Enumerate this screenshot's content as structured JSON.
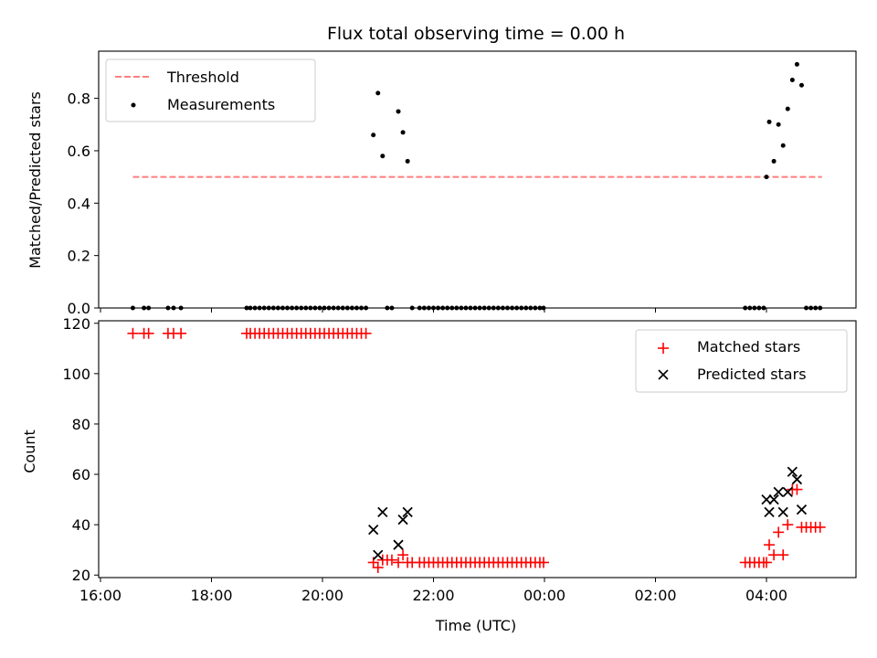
{
  "chart_data": {
    "title": "Flux total observing time = 0.00 h",
    "xlabel": "Time (UTC)",
    "x_ticks": [
      "16:00",
      "18:00",
      "20:00",
      "22:00",
      "00:00",
      "02:00",
      "04:00"
    ],
    "panels": [
      {
        "type": "scatter",
        "ylabel": "Matched/Predicted stars",
        "ylim": [
          0,
          0.98
        ],
        "yticks": [
          "0.0",
          "0.2",
          "0.4",
          "0.6",
          "0.8"
        ],
        "legend_placement": "upper-left",
        "series": [
          {
            "name": "Threshold",
            "kind": "line",
            "style": "dashed",
            "color": "#ff7f7f",
            "x": [
              "16:35",
              "05:00"
            ],
            "y": [
              0.5,
              0.5
            ]
          },
          {
            "name": "Measurements",
            "kind": "points",
            "color": "#000000",
            "x": [
              "16:35",
              "16:47",
              "16:52",
              "17:13",
              "17:19",
              "17:27",
              "18:38",
              "18:42",
              "18:47",
              "18:52",
              "18:57",
              "19:02",
              "19:07",
              "19:12",
              "19:17",
              "19:22",
              "19:27",
              "19:32",
              "19:37",
              "19:42",
              "19:47",
              "19:52",
              "19:57",
              "20:02",
              "20:07",
              "20:12",
              "20:17",
              "20:22",
              "20:27",
              "20:32",
              "20:37",
              "20:42",
              "20:47",
              "20:55",
              "21:00",
              "21:05",
              "21:10",
              "21:15",
              "21:22",
              "21:27",
              "21:32",
              "21:37",
              "21:45",
              "21:50",
              "21:55",
              "22:00",
              "22:05",
              "22:10",
              "22:15",
              "22:20",
              "22:25",
              "22:30",
              "22:35",
              "22:40",
              "22:45",
              "22:50",
              "22:55",
              "23:00",
              "23:05",
              "23:10",
              "23:15",
              "23:20",
              "23:25",
              "23:30",
              "23:35",
              "23:40",
              "23:45",
              "23:50",
              "23:55",
              "23:59",
              "03:37",
              "03:42",
              "03:47",
              "03:52",
              "03:57",
              "04:00",
              "04:03",
              "04:08",
              "04:13",
              "04:18",
              "04:23",
              "04:28",
              "04:33",
              "04:38",
              "04:43",
              "04:48",
              "04:53",
              "04:58"
            ],
            "y": [
              0,
              0,
              0,
              0,
              0,
              0,
              0,
              0,
              0,
              0,
              0,
              0,
              0,
              0,
              0,
              0,
              0,
              0,
              0,
              0,
              0,
              0,
              0,
              0,
              0,
              0,
              0,
              0,
              0,
              0,
              0,
              0,
              0,
              0.66,
              0.82,
              0.58,
              0,
              0,
              0.75,
              0.67,
              0.56,
              0,
              0,
              0,
              0,
              0,
              0,
              0,
              0,
              0,
              0,
              0,
              0,
              0,
              0,
              0,
              0,
              0,
              0,
              0,
              0,
              0,
              0,
              0,
              0,
              0,
              0,
              0,
              0,
              0,
              0,
              0,
              0,
              0,
              0,
              0.5,
              0.71,
              0.56,
              0.7,
              0.62,
              0.76,
              0.87,
              0.93,
              0.85,
              0,
              0,
              0,
              0
            ]
          }
        ]
      },
      {
        "type": "scatter",
        "ylabel": "Count",
        "ylim": [
          19,
          121
        ],
        "yticks": [
          "20",
          "40",
          "60",
          "80",
          "100",
          "120"
        ],
        "legend_placement": "upper-right",
        "series": [
          {
            "name": "Matched stars",
            "marker": "plus",
            "color": "#ff0000",
            "x": [
              "16:35",
              "16:47",
              "16:52",
              "17:13",
              "17:19",
              "17:27",
              "18:38",
              "18:42",
              "18:47",
              "18:52",
              "18:57",
              "19:02",
              "19:07",
              "19:12",
              "19:17",
              "19:22",
              "19:27",
              "19:32",
              "19:37",
              "19:42",
              "19:47",
              "19:52",
              "19:57",
              "20:02",
              "20:07",
              "20:12",
              "20:17",
              "20:22",
              "20:27",
              "20:32",
              "20:37",
              "20:42",
              "20:47",
              "20:55",
              "21:00",
              "21:05",
              "21:10",
              "21:15",
              "21:22",
              "21:27",
              "21:32",
              "21:37",
              "21:45",
              "21:50",
              "21:55",
              "22:00",
              "22:05",
              "22:10",
              "22:15",
              "22:20",
              "22:25",
              "22:30",
              "22:35",
              "22:40",
              "22:45",
              "22:50",
              "22:55",
              "23:00",
              "23:05",
              "23:10",
              "23:15",
              "23:20",
              "23:25",
              "23:30",
              "23:35",
              "23:40",
              "23:45",
              "23:50",
              "23:55",
              "23:59",
              "03:37",
              "03:42",
              "03:47",
              "03:52",
              "03:57",
              "04:00",
              "04:03",
              "04:08",
              "04:13",
              "04:18",
              "04:23",
              "04:28",
              "04:33",
              "04:38",
              "04:43",
              "04:48",
              "04:53",
              "04:58"
            ],
            "y": [
              116,
              116,
              116,
              116,
              116,
              116,
              116,
              116,
              116,
              116,
              116,
              116,
              116,
              116,
              116,
              116,
              116,
              116,
              116,
              116,
              116,
              116,
              116,
              116,
              116,
              116,
              116,
              116,
              116,
              116,
              116,
              116,
              116,
              25,
              23,
              26,
              26,
              26,
              25,
              28,
              25,
              25,
              25,
              25,
              25,
              25,
              25,
              25,
              25,
              25,
              25,
              25,
              25,
              25,
              25,
              25,
              25,
              25,
              25,
              25,
              25,
              25,
              25,
              25,
              25,
              25,
              25,
              25,
              25,
              25,
              25,
              25,
              25,
              25,
              25,
              25,
              32,
              28,
              37,
              28,
              40,
              54,
              54,
              39,
              39,
              39,
              39,
              39
            ]
          },
          {
            "name": "Predicted stars",
            "marker": "x",
            "color": "#000000",
            "x": [
              "20:55",
              "21:00",
              "21:05",
              "21:22",
              "21:27",
              "21:32",
              "04:00",
              "04:03",
              "04:08",
              "04:13",
              "04:18",
              "04:23",
              "04:28",
              "04:33",
              "04:38"
            ],
            "y": [
              38,
              28,
              45,
              32,
              42,
              45,
              50,
              45,
              50,
              53,
              45,
              53,
              61,
              58,
              46
            ]
          }
        ]
      }
    ]
  }
}
